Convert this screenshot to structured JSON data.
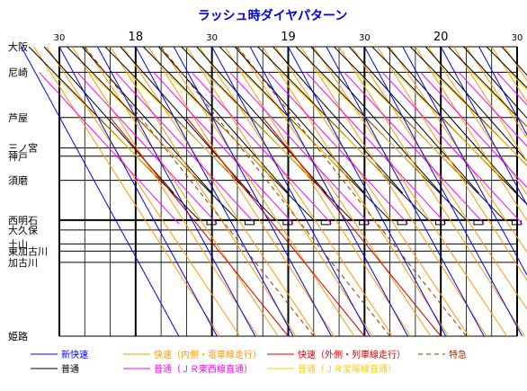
{
  "title": "ラッシュ時ダイヤパターン",
  "colors": {
    "title": "#0000dd",
    "grid_major": "#000000",
    "grid_minor": "#000000",
    "shinkaisoku": "#0000ff",
    "kaisoku": "#ff9900",
    "kaisoku_outer": "#dd0000",
    "tokkyu": "#993300",
    "futsu": "#000000",
    "futsu_tozai": "#ff00ff",
    "futsu_other": "#ffcc00"
  },
  "time_axis": {
    "start_min": 0,
    "end_min": 180,
    "hour_labels": [
      "18",
      "19",
      "20"
    ],
    "half_label": "30"
  },
  "stations": [
    {
      "name": "大阪",
      "km": 0
    },
    {
      "name": "尼崎",
      "km": 7.7
    },
    {
      "name": "芦屋",
      "km": 21.4
    },
    {
      "name": "三ノ宮",
      "km": 30.6
    },
    {
      "name": "神戸",
      "km": 33.1
    },
    {
      "name": "須磨",
      "km": 40.4
    },
    {
      "name": "西明石",
      "km": 52.4
    },
    {
      "name": "大久保",
      "km": 55.4
    },
    {
      "name": "土山",
      "km": 59.6
    },
    {
      "name": "東加古川",
      "km": 61.8
    },
    {
      "name": "加古川",
      "km": 65.2
    },
    {
      "name": "姫路",
      "km": 87.5
    }
  ],
  "legend": [
    {
      "label": "新快速",
      "style": "solid",
      "color": "#0000ff"
    },
    {
      "label": "快速（内側・電車線走行）",
      "style": "solid",
      "color": "#ff9900"
    },
    {
      "label": "快速（外側・列車線走行）",
      "style": "solid",
      "color": "#dd0000"
    },
    {
      "label": "特急",
      "style": "dashed",
      "color": "#993300"
    },
    {
      "label": "普通",
      "style": "solid",
      "color": "#000000"
    },
    {
      "label": "普通（ＪＲ東西線直通）",
      "style": "solid",
      "color": "#ff00ff"
    },
    {
      "label": "普通（ＪＲ宝塚線直通）",
      "style": "solid",
      "color": "#ffcc00"
    }
  ]
}
